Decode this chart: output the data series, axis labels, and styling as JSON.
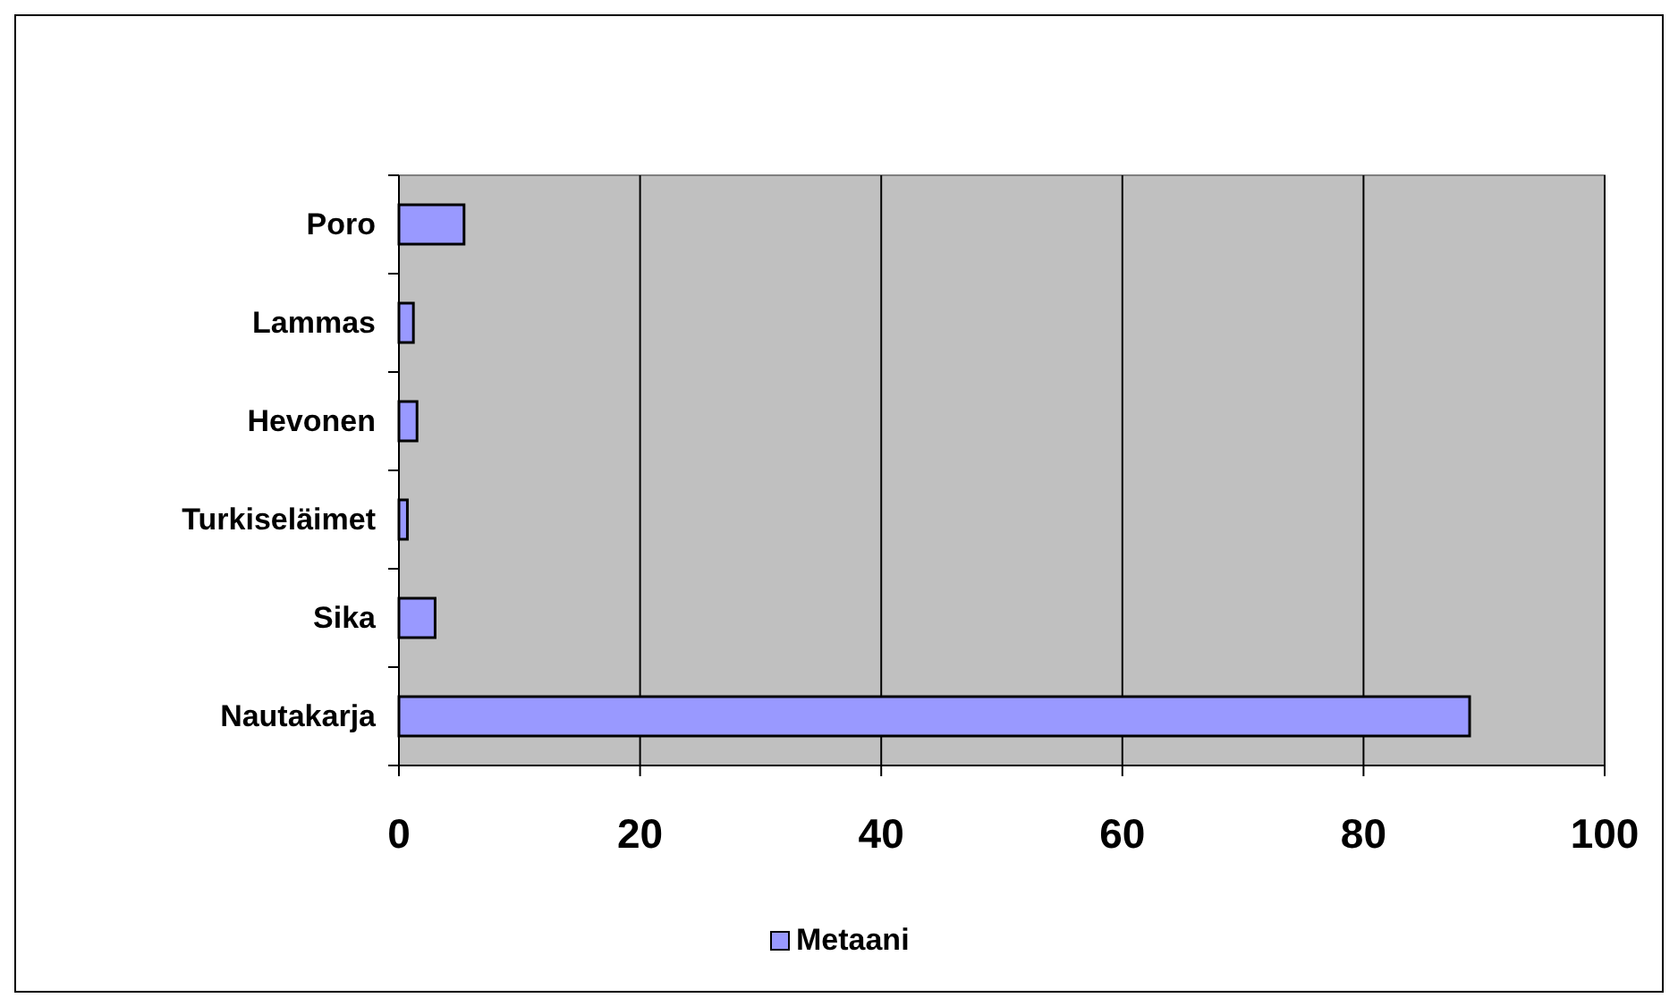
{
  "chart_data": {
    "type": "bar",
    "orientation": "horizontal",
    "categories": [
      "Poro",
      "Lammas",
      "Hevonen",
      "Turkiseläimet",
      "Sika",
      "Nautakarja"
    ],
    "series": [
      {
        "name": "Metaani",
        "color": "#9999ff",
        "values": [
          5.4,
          1.2,
          1.5,
          0.7,
          3.0,
          88.8
        ]
      }
    ],
    "xlim": [
      0,
      100
    ],
    "xticks": [
      0,
      20,
      40,
      60,
      80,
      100
    ],
    "grid": "x",
    "legend": "bottom"
  }
}
